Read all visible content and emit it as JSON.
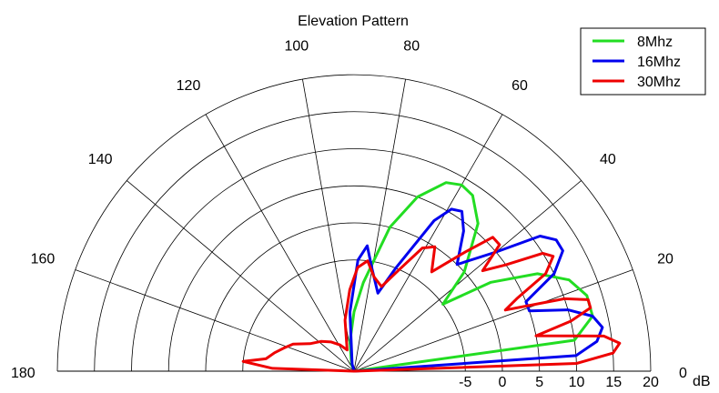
{
  "chart_data": {
    "type": "polar",
    "title": "Elevation Pattern",
    "radial_unit": "dB",
    "radial_ticks": [
      -5,
      0,
      5,
      10,
      15,
      20
    ],
    "radial_range": [
      -20,
      20
    ],
    "angle_ticks": [
      0,
      20,
      40,
      60,
      80,
      100,
      120,
      140,
      160,
      180
    ],
    "angle_range": [
      0,
      180
    ],
    "grid": true,
    "legend_position": "top-right",
    "colors": {
      "8Mhz": "#22dd22",
      "16Mhz": "#0000ee",
      "30Mhz": "#ee0000"
    },
    "series": [
      {
        "name": "8Mhz",
        "points": [
          [
            0,
            -20
          ],
          [
            8,
            10
          ],
          [
            13,
            13
          ],
          [
            18,
            13
          ],
          [
            23,
            11.5
          ],
          [
            28,
            8
          ],
          [
            33,
            2
          ],
          [
            37,
            -5
          ],
          [
            42,
            0
          ],
          [
            50,
            6
          ],
          [
            56,
            8.6
          ],
          [
            60,
            9
          ],
          [
            64,
            8.3
          ],
          [
            70,
            5
          ],
          [
            76,
            0
          ],
          [
            80,
            -5
          ],
          [
            84,
            -8
          ],
          [
            90,
            -12
          ],
          [
            98,
            -16
          ],
          [
            110,
            -19
          ],
          [
            180,
            -20
          ]
        ]
      },
      {
        "name": "16Mhz",
        "points": [
          [
            0,
            -20
          ],
          [
            4,
            10
          ],
          [
            7,
            13
          ],
          [
            10,
            14
          ],
          [
            13,
            13
          ],
          [
            16,
            10
          ],
          [
            19,
            5
          ],
          [
            22,
            5
          ],
          [
            26,
            10
          ],
          [
            30,
            12.5
          ],
          [
            33,
            12.5
          ],
          [
            36,
            11
          ],
          [
            40,
            5
          ],
          [
            46,
            0
          ],
          [
            52,
            4
          ],
          [
            56,
            6
          ],
          [
            59,
            5.5
          ],
          [
            62,
            3
          ],
          [
            68,
            -5
          ],
          [
            73,
            -9
          ],
          [
            80,
            -6
          ],
          [
            84,
            -3
          ],
          [
            88,
            -5
          ],
          [
            94,
            -12
          ],
          [
            105,
            -19
          ],
          [
            180,
            -20
          ]
        ]
      },
      {
        "name": "30Mhz",
        "points": [
          [
            0,
            -20
          ],
          [
            2,
            10
          ],
          [
            4,
            15
          ],
          [
            6,
            16
          ],
          [
            8,
            14
          ],
          [
            11,
            5
          ],
          [
            13,
            10
          ],
          [
            15,
            13
          ],
          [
            17,
            13
          ],
          [
            19,
            10
          ],
          [
            22,
            2
          ],
          [
            24,
            4
          ],
          [
            27,
            9
          ],
          [
            30,
            11
          ],
          [
            32,
            10
          ],
          [
            35,
            5
          ],
          [
            38,
            2
          ],
          [
            41,
            6
          ],
          [
            44,
            6
          ],
          [
            47,
            2
          ],
          [
            52,
            -3
          ],
          [
            57,
            0
          ],
          [
            61,
            -1
          ],
          [
            66,
            -5
          ],
          [
            72,
            -8
          ],
          [
            78,
            -7
          ],
          [
            83,
            -5
          ],
          [
            88,
            -6
          ],
          [
            93,
            -9
          ],
          [
            100,
            -13
          ],
          [
            108,
            -17
          ],
          [
            118,
            -16
          ],
          [
            128,
            -15
          ],
          [
            138,
            -14
          ],
          [
            148,
            -13
          ],
          [
            156,
            -11
          ],
          [
            162,
            -10
          ],
          [
            167,
            -9
          ],
          [
            172,
            -8
          ],
          [
            175,
            -5
          ],
          [
            178,
            -9
          ],
          [
            180,
            -20
          ]
        ]
      }
    ]
  }
}
